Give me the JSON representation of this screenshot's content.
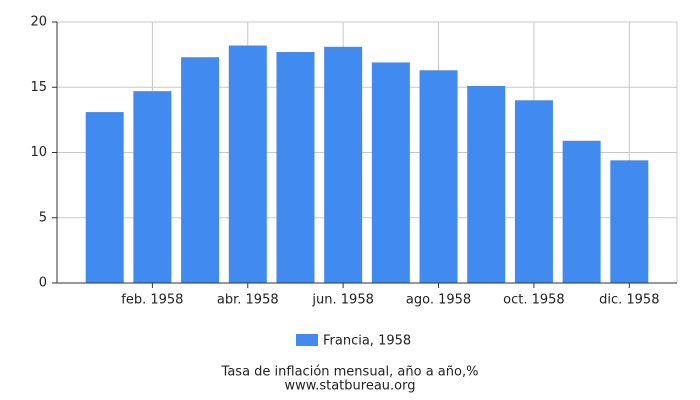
{
  "chart_data": {
    "type": "bar",
    "categories": [
      null,
      "feb. 1958",
      null,
      "abr. 1958",
      null,
      "jun. 1958",
      null,
      "ago. 1958",
      null,
      "oct. 1958",
      null,
      "dic. 1958"
    ],
    "series": [
      {
        "name": "Francia, 1958",
        "color": "#418af0",
        "values": [
          13.1,
          14.7,
          17.3,
          18.2,
          17.7,
          18.1,
          16.9,
          16.3,
          15.1,
          14.0,
          10.9,
          9.4
        ]
      }
    ],
    "ylim": [
      0,
      20
    ],
    "yticks": [
      0,
      5,
      10,
      15,
      20
    ],
    "grid": true,
    "title": "Tasa de inflación mensual, año a año,%",
    "subtitle": "www.statbureau.org"
  }
}
